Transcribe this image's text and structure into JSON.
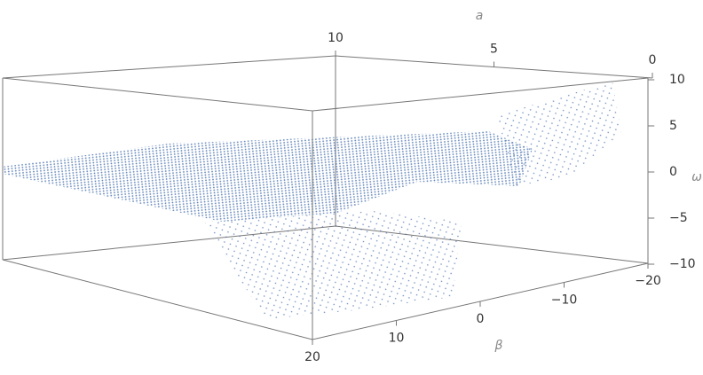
{
  "chart_data": {
    "type": "scatter3d",
    "color": "#4a72b0",
    "xlabel": "β",
    "ylabel": "a",
    "zlabel": "ω",
    "xlim": [
      20,
      -20
    ],
    "xticks": [
      20,
      10,
      0,
      {
        "value": -10,
        "label": "−10"
      },
      {
        "value": -20,
        "label": "−20"
      }
    ],
    "ylim": [
      10,
      0
    ],
    "yticks": [
      10,
      5,
      0
    ],
    "zlim": [
      10,
      -10
    ],
    "zticks": [
      10,
      5,
      0,
      {
        "value": -5,
        "label": "−5"
      },
      {
        "value": -10,
        "label": "−10"
      }
    ]
  }
}
